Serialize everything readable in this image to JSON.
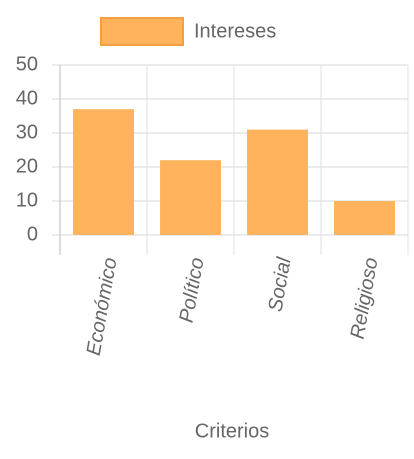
{
  "chart_data": {
    "type": "bar",
    "series": [
      {
        "name": "Intereses",
        "color": "#ffb35c",
        "values": [
          37,
          22,
          31,
          10
        ]
      }
    ],
    "categories": [
      "Económico",
      "Político",
      "Social",
      "Religioso"
    ],
    "x_label": "Criterios",
    "ylim": [
      0,
      50
    ],
    "yticks": [
      0,
      10,
      20,
      30,
      40,
      50
    ],
    "grid": true,
    "legend": "top"
  }
}
